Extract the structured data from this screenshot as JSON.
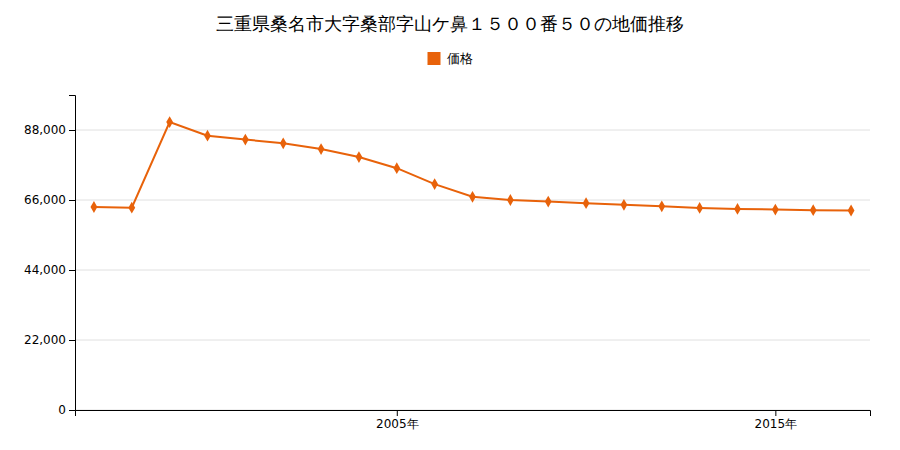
{
  "chart_data": {
    "type": "line",
    "title": "三重県桑名市大字桑部字山ケ鼻１５００番５０の地価推移",
    "x": [
      1997,
      1998,
      1999,
      2000,
      2001,
      2002,
      2003,
      2004,
      2005,
      2006,
      2007,
      2008,
      2009,
      2010,
      2011,
      2012,
      2013,
      2014,
      2015,
      2016,
      2017
    ],
    "series": [
      {
        "name": "価格",
        "color": "#E8620A",
        "marker": "diamond",
        "values": [
          63800,
          63600,
          90500,
          86200,
          85000,
          83800,
          82000,
          79500,
          76000,
          71000,
          67000,
          66000,
          65500,
          65000,
          64500,
          64000,
          63500,
          63200,
          63000,
          62800,
          62700
        ]
      }
    ],
    "xlim": [
      1996.5,
      2017.5
    ],
    "xticks": [
      {
        "value": 2005,
        "label": "2005年"
      },
      {
        "value": 2015,
        "label": "2015年"
      }
    ],
    "ylim": [
      0,
      99000
    ],
    "yticks": [
      0,
      {
        "value": 22000,
        "label": "22,000"
      },
      {
        "value": 44000,
        "label": "44,000"
      },
      {
        "value": 66000,
        "label": "66,000"
      },
      {
        "value": 88000,
        "label": "88,000"
      }
    ],
    "grid": true,
    "legend": "top"
  }
}
